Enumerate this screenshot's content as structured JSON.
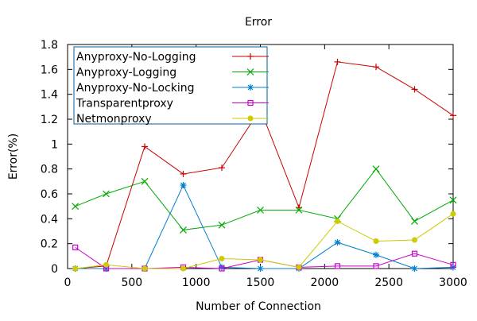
{
  "chart_data": {
    "type": "line",
    "title": "Error",
    "xlabel": "Number of Connection",
    "ylabel": "Error(%)",
    "xlim": [
      0,
      3000
    ],
    "ylim": [
      0,
      1.8
    ],
    "xticks": [
      0,
      500,
      1000,
      1500,
      2000,
      2500,
      3000
    ],
    "yticks": [
      0,
      0.2,
      0.4,
      0.6,
      0.8,
      1,
      1.2,
      1.4,
      1.6,
      1.8
    ],
    "xtick_labels": [
      "0",
      "500",
      "1000",
      "1500",
      "2000",
      "2500",
      "3000"
    ],
    "ytick_labels": [
      "0",
      "0.2",
      "0.4",
      "0.6",
      "0.8",
      "1",
      "1.2",
      "1.4",
      "1.6",
      "1.8"
    ],
    "grid": false,
    "legend_position": "top-left",
    "x": [
      60,
      300,
      600,
      900,
      1200,
      1500,
      1800,
      2100,
      2400,
      2700,
      3000
    ],
    "series": [
      {
        "name": "Anyproxy-No-Logging",
        "color": "#cc0000",
        "marker": "plus",
        "values": [
          0,
          0.02,
          0.98,
          0.76,
          0.81,
          1.28,
          0.49,
          1.66,
          1.62,
          1.44,
          1.23
        ]
      },
      {
        "name": "Anyproxy-Logging",
        "color": "#00aa00",
        "marker": "cross",
        "values": [
          0.5,
          0.6,
          0.7,
          0.31,
          0.35,
          0.47,
          0.47,
          0.4,
          0.8,
          0.38,
          0.55
        ]
      },
      {
        "name": "Anyproxy-No-Locking",
        "color": "#0080cc",
        "marker": "star",
        "values": [
          0,
          0,
          0,
          0.67,
          0.01,
          0,
          0,
          0.21,
          0.11,
          0,
          0.01
        ]
      },
      {
        "name": "Transparentproxy",
        "color": "#cc00cc",
        "marker": "square",
        "values": [
          0.17,
          0,
          0,
          0.01,
          0,
          0.07,
          0.01,
          0.02,
          0.02,
          0.12,
          0.03
        ]
      },
      {
        "name": "Netmonproxy",
        "color": "#cccc00",
        "marker": "circle",
        "values": [
          0,
          0.03,
          0,
          0,
          0.08,
          0.07,
          0.01,
          0.38,
          0.22,
          0.23,
          0.44
        ]
      }
    ]
  }
}
